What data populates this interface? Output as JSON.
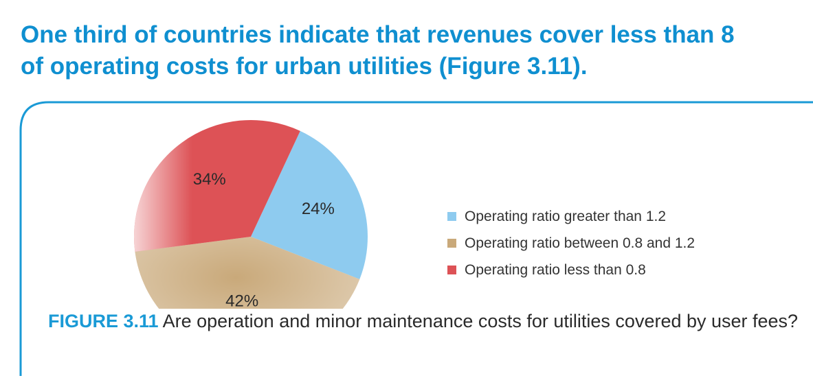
{
  "headline": {
    "line1": "One third of countries indicate that revenues cover less than 8",
    "line2": "of operating costs for urban utilities (Figure 3.11)."
  },
  "caption": {
    "label": "FIGURE 3.11",
    "text": " Are operation and minor maintenance costs for utilities covered by user fees?"
  },
  "colors": {
    "accent": "#0f8fd0",
    "frame": "#1a9ad6"
  },
  "chart_data": {
    "type": "pie",
    "title": "",
    "slices": [
      {
        "name": "Operating ratio greater than 1.2",
        "value": 24,
        "label": "24%",
        "color": "#8ecbef"
      },
      {
        "name": "Operating ratio between 0.8 and 1.2",
        "value": 42,
        "label": "42%",
        "color": "#c9a97a"
      },
      {
        "name": "Operating ratio less than 0.8",
        "value": 34,
        "label": "34%",
        "color": "#dd5256"
      }
    ],
    "legend_position": "right"
  }
}
